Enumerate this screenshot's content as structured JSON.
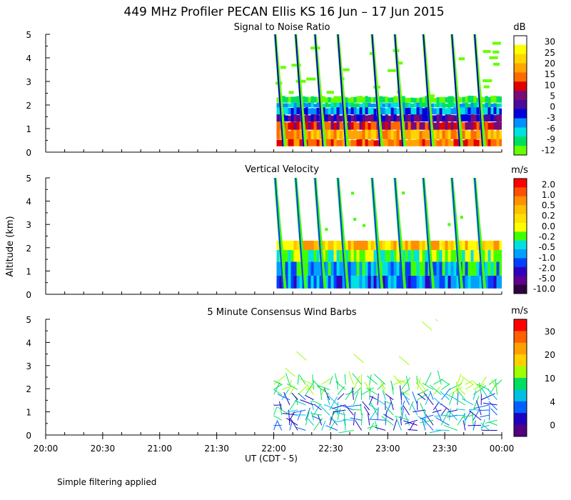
{
  "title": "449 MHz Profiler PECAN Ellis KS 16 Jun – 17 Jun 2015",
  "ylabel": "Altitude (km)",
  "xlabel": "UT  (CDT - 5)",
  "footnote": "Simple filtering applied",
  "x_ticks": [
    "20:00",
    "20:30",
    "21:00",
    "21:30",
    "22:00",
    "22:30",
    "23:00",
    "23:30",
    "00:00"
  ],
  "y_ticks": [
    "0",
    "1",
    "2",
    "3",
    "4",
    "5"
  ],
  "panels": [
    {
      "title": "Signal to Noise Ratio",
      "unit": "dB",
      "colorbar_labels": [
        "30",
        "25",
        "20",
        "15",
        "10",
        "5",
        "0",
        "-3",
        "-6",
        "-9",
        "-12"
      ],
      "colors": [
        "#ffffff",
        "#ffff00",
        "#ffd700",
        "#ffa500",
        "#ff6a00",
        "#e00000",
        "#7a0a78",
        "#4a0a9a",
        "#0000dd",
        "#0090ff",
        "#00e0e0",
        "#00e060",
        "#66ff00"
      ]
    },
    {
      "title": "Vertical Velocity",
      "unit": "m/s",
      "colorbar_labels": [
        "2.0",
        "1.0",
        "0.5",
        "0.2",
        "0.0",
        "-0.2",
        "-0.5",
        "-1.0",
        "-2.0",
        "-5.0",
        "-10.0"
      ],
      "colors": [
        "#ff0000",
        "#ff5000",
        "#ff9000",
        "#ffc000",
        "#ffe000",
        "#ffff00",
        "#40ff00",
        "#00e0e0",
        "#00a0ff",
        "#0040ff",
        "#3000c0",
        "#600090",
        "#300040"
      ]
    },
    {
      "title": "5 Minute Consensus Wind Barbs",
      "unit": "m/s",
      "colorbar_labels": [
        "30",
        "20",
        "10",
        "4",
        "0"
      ],
      "colors": [
        "#ff0000",
        "#ff6000",
        "#ffa000",
        "#ffd000",
        "#a0ff00",
        "#00e060",
        "#00c0e0",
        "#0060ff",
        "#2000c0",
        "#500080"
      ]
    }
  ],
  "chart_data": [
    {
      "type": "heatmap",
      "title": "Signal to Noise Ratio",
      "ylabel": "Altitude (km)",
      "xlabel": "UT  (CDT - 5)",
      "xlim": [
        "20:00",
        "00:00"
      ],
      "ylim": [
        0,
        5
      ],
      "colorbar_unit": "dB",
      "colorbar_range": [
        -12,
        30
      ],
      "data_window": [
        "22:00",
        "00:00"
      ],
      "description_values": {
        "high_snr_layer_km": [
          0.2,
          1.0
        ],
        "low_snr_top_km": 2.3
      }
    },
    {
      "type": "heatmap",
      "title": "Vertical Velocity",
      "ylabel": "Altitude (km)",
      "xlim": [
        "20:00",
        "00:00"
      ],
      "ylim": [
        0,
        5
      ],
      "colorbar_unit": "m/s",
      "colorbar_range": [
        -10.0,
        2.0
      ],
      "data_window": [
        "22:00",
        "00:00"
      ]
    },
    {
      "type": "scatter",
      "title": "5 Minute Consensus Wind Barbs",
      "ylabel": "Altitude (km)",
      "xlim": [
        "20:00",
        "00:00"
      ],
      "ylim": [
        0,
        5
      ],
      "colorbar_unit": "m/s",
      "colorbar_range": [
        0,
        30
      ],
      "data_window": [
        "21:58",
        "00:00"
      ]
    }
  ]
}
